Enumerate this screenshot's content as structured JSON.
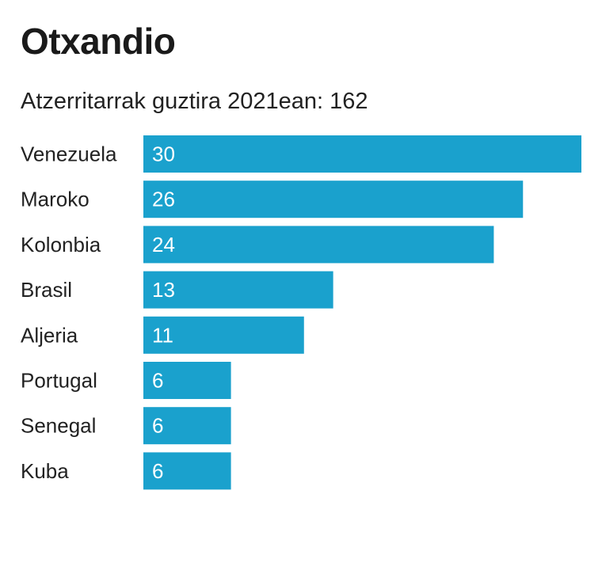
{
  "header": {
    "title": "Otxandio",
    "subtitle": "Atzerritarrak guztira 2021ean: 162"
  },
  "colors": {
    "bar": "#1aa1cd",
    "bar_label": "#ffffff",
    "category_label": "#222222"
  },
  "chart_data": {
    "type": "bar",
    "orientation": "horizontal",
    "title": "Otxandio",
    "subtitle": "Atzerritarrak guztira 2021ean: 162",
    "categories": [
      "Venezuela",
      "Maroko",
      "Kolonbia",
      "Brasil",
      "Aljeria",
      "Portugal",
      "Senegal",
      "Kuba"
    ],
    "values": [
      30,
      26,
      24,
      13,
      11,
      6,
      6,
      6
    ],
    "xlim": [
      0,
      30
    ],
    "grid": false,
    "legend": "none"
  }
}
